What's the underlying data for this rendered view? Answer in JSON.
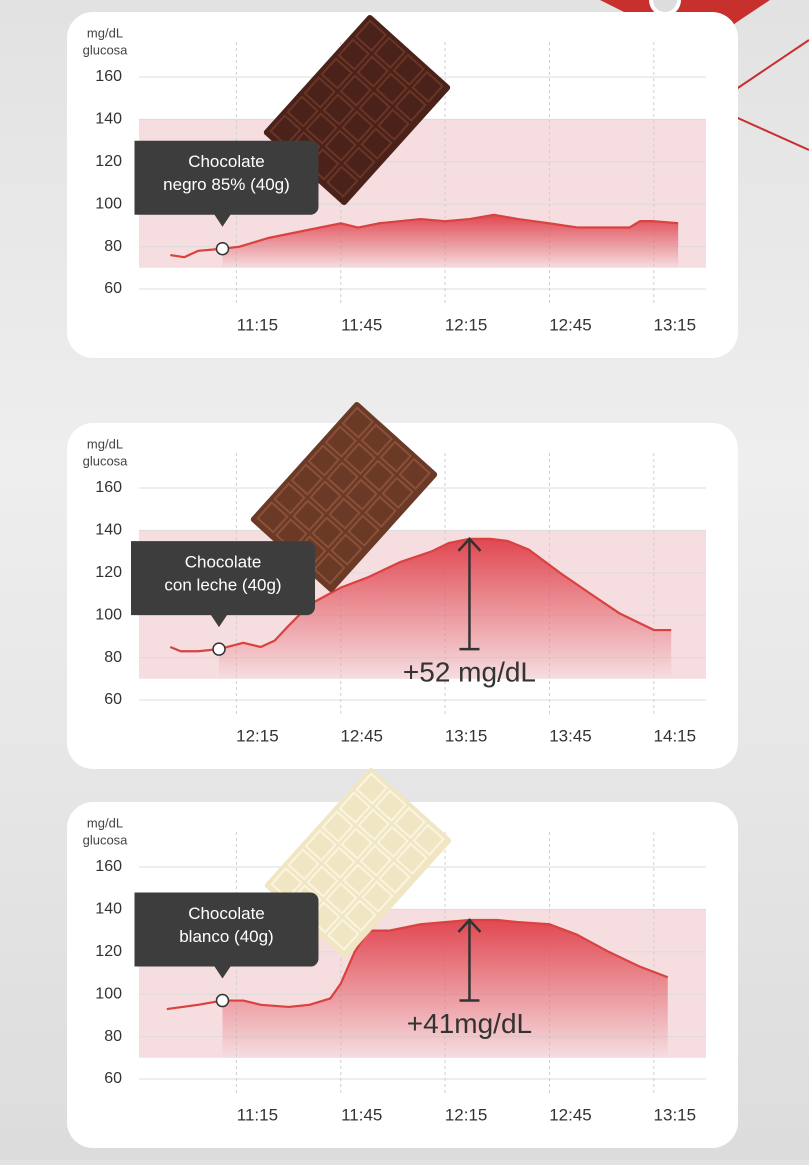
{
  "chart_data": [
    {
      "type": "line",
      "ylabel": [
        "mg/dL",
        "glucosa"
      ],
      "ylim": [
        60,
        160
      ],
      "yticks": [
        60,
        80,
        100,
        120,
        140,
        160
      ],
      "xlim": [
        "10:47",
        "13:30"
      ],
      "xticks": [
        "11:15",
        "11:45",
        "12:15",
        "12:45",
        "13:15"
      ],
      "band": [
        70,
        140
      ],
      "band_color": "#f5dde0",
      "grid": true,
      "label": [
        "Chocolate",
        "negro 85% (40g)"
      ],
      "highlight": 3,
      "x": [
        "10:56",
        "11:00",
        "11:04",
        "11:11",
        "11:16",
        "11:24",
        "11:33",
        "11:45",
        "11:50",
        "11:56",
        "12:08",
        "12:15",
        "12:22",
        "12:29",
        "12:36",
        "12:45",
        "12:53",
        "13:02",
        "13:08",
        "13:11",
        "13:15",
        "13:22"
      ],
      "series": [
        {
          "color": "#d9423f",
          "values": [
            76,
            75,
            78,
            79,
            80,
            84,
            87,
            91,
            89,
            91,
            93,
            92,
            93,
            95,
            93,
            91,
            89,
            89,
            89,
            92,
            92,
            91
          ]
        }
      ]
    },
    {
      "type": "line",
      "ylabel": [
        "mg/dL",
        "glucosa"
      ],
      "ylim": [
        60,
        160
      ],
      "yticks": [
        60,
        80,
        100,
        120,
        140,
        160
      ],
      "xlim": [
        "11:47",
        "14:30"
      ],
      "xticks": [
        "12:15",
        "12:45",
        "13:15",
        "13:45",
        "14:15"
      ],
      "band": [
        70,
        140
      ],
      "band_color": "#f5dde0",
      "grid": true,
      "label": [
        "Chocolate",
        "con leche (40g)"
      ],
      "highlight": 3,
      "annotation": "+52 mg/dL",
      "x": [
        "11:56",
        "11:59",
        "12:04",
        "12:10",
        "12:17",
        "12:22",
        "12:26",
        "12:30",
        "12:36",
        "12:45",
        "12:53",
        "13:02",
        "13:11",
        "13:16",
        "13:22",
        "13:28",
        "13:33",
        "13:39",
        "13:48",
        "13:56",
        "14:05",
        "14:15",
        "14:20"
      ],
      "series": [
        {
          "color": "#d9423f",
          "values": [
            85,
            83,
            83,
            84,
            87,
            85,
            88,
            95,
            105,
            113,
            118,
            125,
            130,
            134,
            136,
            136,
            135,
            131,
            120,
            111,
            101,
            93,
            93
          ]
        }
      ]
    },
    {
      "type": "line",
      "ylabel": [
        "mg/dL",
        "glucosa"
      ],
      "ylim": [
        60,
        160
      ],
      "yticks": [
        60,
        80,
        100,
        120,
        140,
        160
      ],
      "xlim": [
        "10:47",
        "13:30"
      ],
      "xticks": [
        "11:15",
        "11:45",
        "12:15",
        "12:45",
        "13:15"
      ],
      "band": [
        70,
        140
      ],
      "band_color": "#f5dde0",
      "grid": true,
      "label": [
        "Chocolate",
        "blanco (40g)"
      ],
      "highlight": 2,
      "annotation": "+41mg/dL",
      "x": [
        "10:55",
        "11:04",
        "11:11",
        "11:17",
        "11:22",
        "11:30",
        "11:36",
        "11:42",
        "11:45",
        "11:49",
        "11:53",
        "11:59",
        "12:08",
        "12:15",
        "12:22",
        "12:30",
        "12:36",
        "12:45",
        "12:53",
        "13:02",
        "13:11",
        "13:19"
      ],
      "series": [
        {
          "color": "#d9423f",
          "values": [
            93,
            95,
            97,
            97,
            95,
            94,
            95,
            98,
            105,
            120,
            130,
            130,
            133,
            134,
            135,
            135,
            134,
            133,
            128,
            120,
            113,
            108
          ]
        }
      ]
    }
  ]
}
